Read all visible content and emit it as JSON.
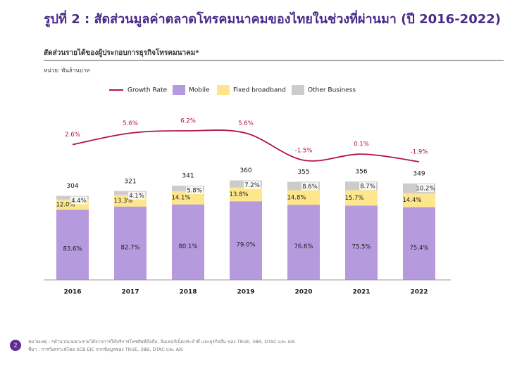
{
  "header": {
    "title": "รูปที่ 2 : สัดส่วนมูลค่าตลาดโทรคมนาคมของไทยในช่วงที่ผ่านมา (ปี 2016-2022)"
  },
  "chart_data": {
    "type": "bar",
    "subtitle": "สัดส่วนรายได้ของผู้ประกอบการธุรกิจโทรคมนาคม*",
    "unit_label": "หน่วย: พันล้านบาท",
    "categories": [
      "2016",
      "2017",
      "2018",
      "2019",
      "2020",
      "2021",
      "2022"
    ],
    "totals": [
      304,
      321,
      341,
      360,
      355,
      356,
      349
    ],
    "series": [
      {
        "name": "Mobile",
        "color": "#b59ade",
        "values": [
          83.6,
          82.7,
          80.1,
          79.0,
          76.6,
          75.5,
          75.4
        ],
        "value_labels": [
          "83.6%",
          "82.7%",
          "80.1%",
          "79.0%",
          "76.6%",
          "75.5%",
          "75.4%"
        ]
      },
      {
        "name": "Fixed broadband",
        "color": "#fde68c",
        "values": [
          12.0,
          13.3,
          14.1,
          13.8,
          14.8,
          15.7,
          14.4
        ],
        "value_labels": [
          "12.0%",
          "13.3%",
          "14.1%",
          "13.8%",
          "14.8%",
          "15.7%",
          "14.4%"
        ]
      },
      {
        "name": "Other Business",
        "color": "#cccccc",
        "values": [
          4.4,
          4.1,
          5.8,
          7.2,
          8.6,
          8.7,
          10.2
        ],
        "value_labels": [
          "4.4%",
          "4.1%",
          "5.8%",
          "7.2%",
          "8.6%",
          "8.7%",
          "10.2%"
        ]
      }
    ],
    "line": {
      "name": "Growth Rate",
      "color": "#b0124f",
      "values": [
        2.6,
        5.6,
        6.2,
        5.6,
        -1.5,
        0.1,
        -1.9
      ],
      "value_labels": [
        "2.6%",
        "5.6%",
        "6.2%",
        "5.6%",
        "-1.5%",
        "0.1%",
        "-1.9%"
      ]
    }
  },
  "footer": {
    "page": "2",
    "notes": [
      "หมายเหตุ : *คำนวณเฉพาะรายได้จากการให้บริการโทรศัพท์มือถือ, อินเทอร์เน็ตประจำที่ และธุรกิจอื่น ของ TRUE, 3BB, DTAC และ AIS",
      "ที่มา : การวิเคราะห์โดย SCB EIC จากข้อมูลของ TRUE, 3BB, DTAC และ AIS"
    ]
  }
}
